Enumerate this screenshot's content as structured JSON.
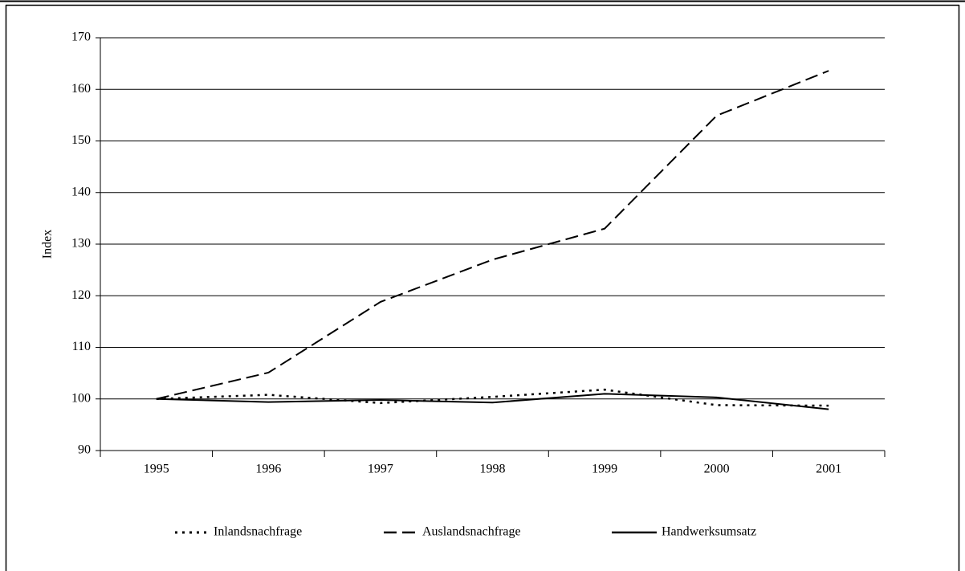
{
  "chart_data": {
    "type": "line",
    "ylabel": "Index",
    "categories": [
      "1995",
      "1996",
      "1997",
      "1998",
      "1999",
      "2000",
      "2001"
    ],
    "series": [
      {
        "name": "Inlandsnachfrage",
        "color": "#000000",
        "style": "dotted",
        "values": [
          100,
          100.8,
          99.2,
          100.4,
          101.8,
          98.8,
          98.7
        ]
      },
      {
        "name": "Auslandsnachfrage",
        "color": "#000000",
        "style": "dashed",
        "values": [
          100,
          105.1,
          118.8,
          127,
          133,
          154.9,
          163.6
        ]
      },
      {
        "name": "Handwerksumsatz",
        "color": "#000000",
        "style": "solid",
        "values": [
          100,
          99.4,
          99.8,
          99.3,
          101,
          100.3,
          98
        ]
      }
    ],
    "ylim": [
      90,
      170
    ],
    "yticks": [
      90,
      100,
      110,
      120,
      130,
      140,
      150,
      160,
      170
    ],
    "grid": true,
    "legend": "bottom"
  }
}
